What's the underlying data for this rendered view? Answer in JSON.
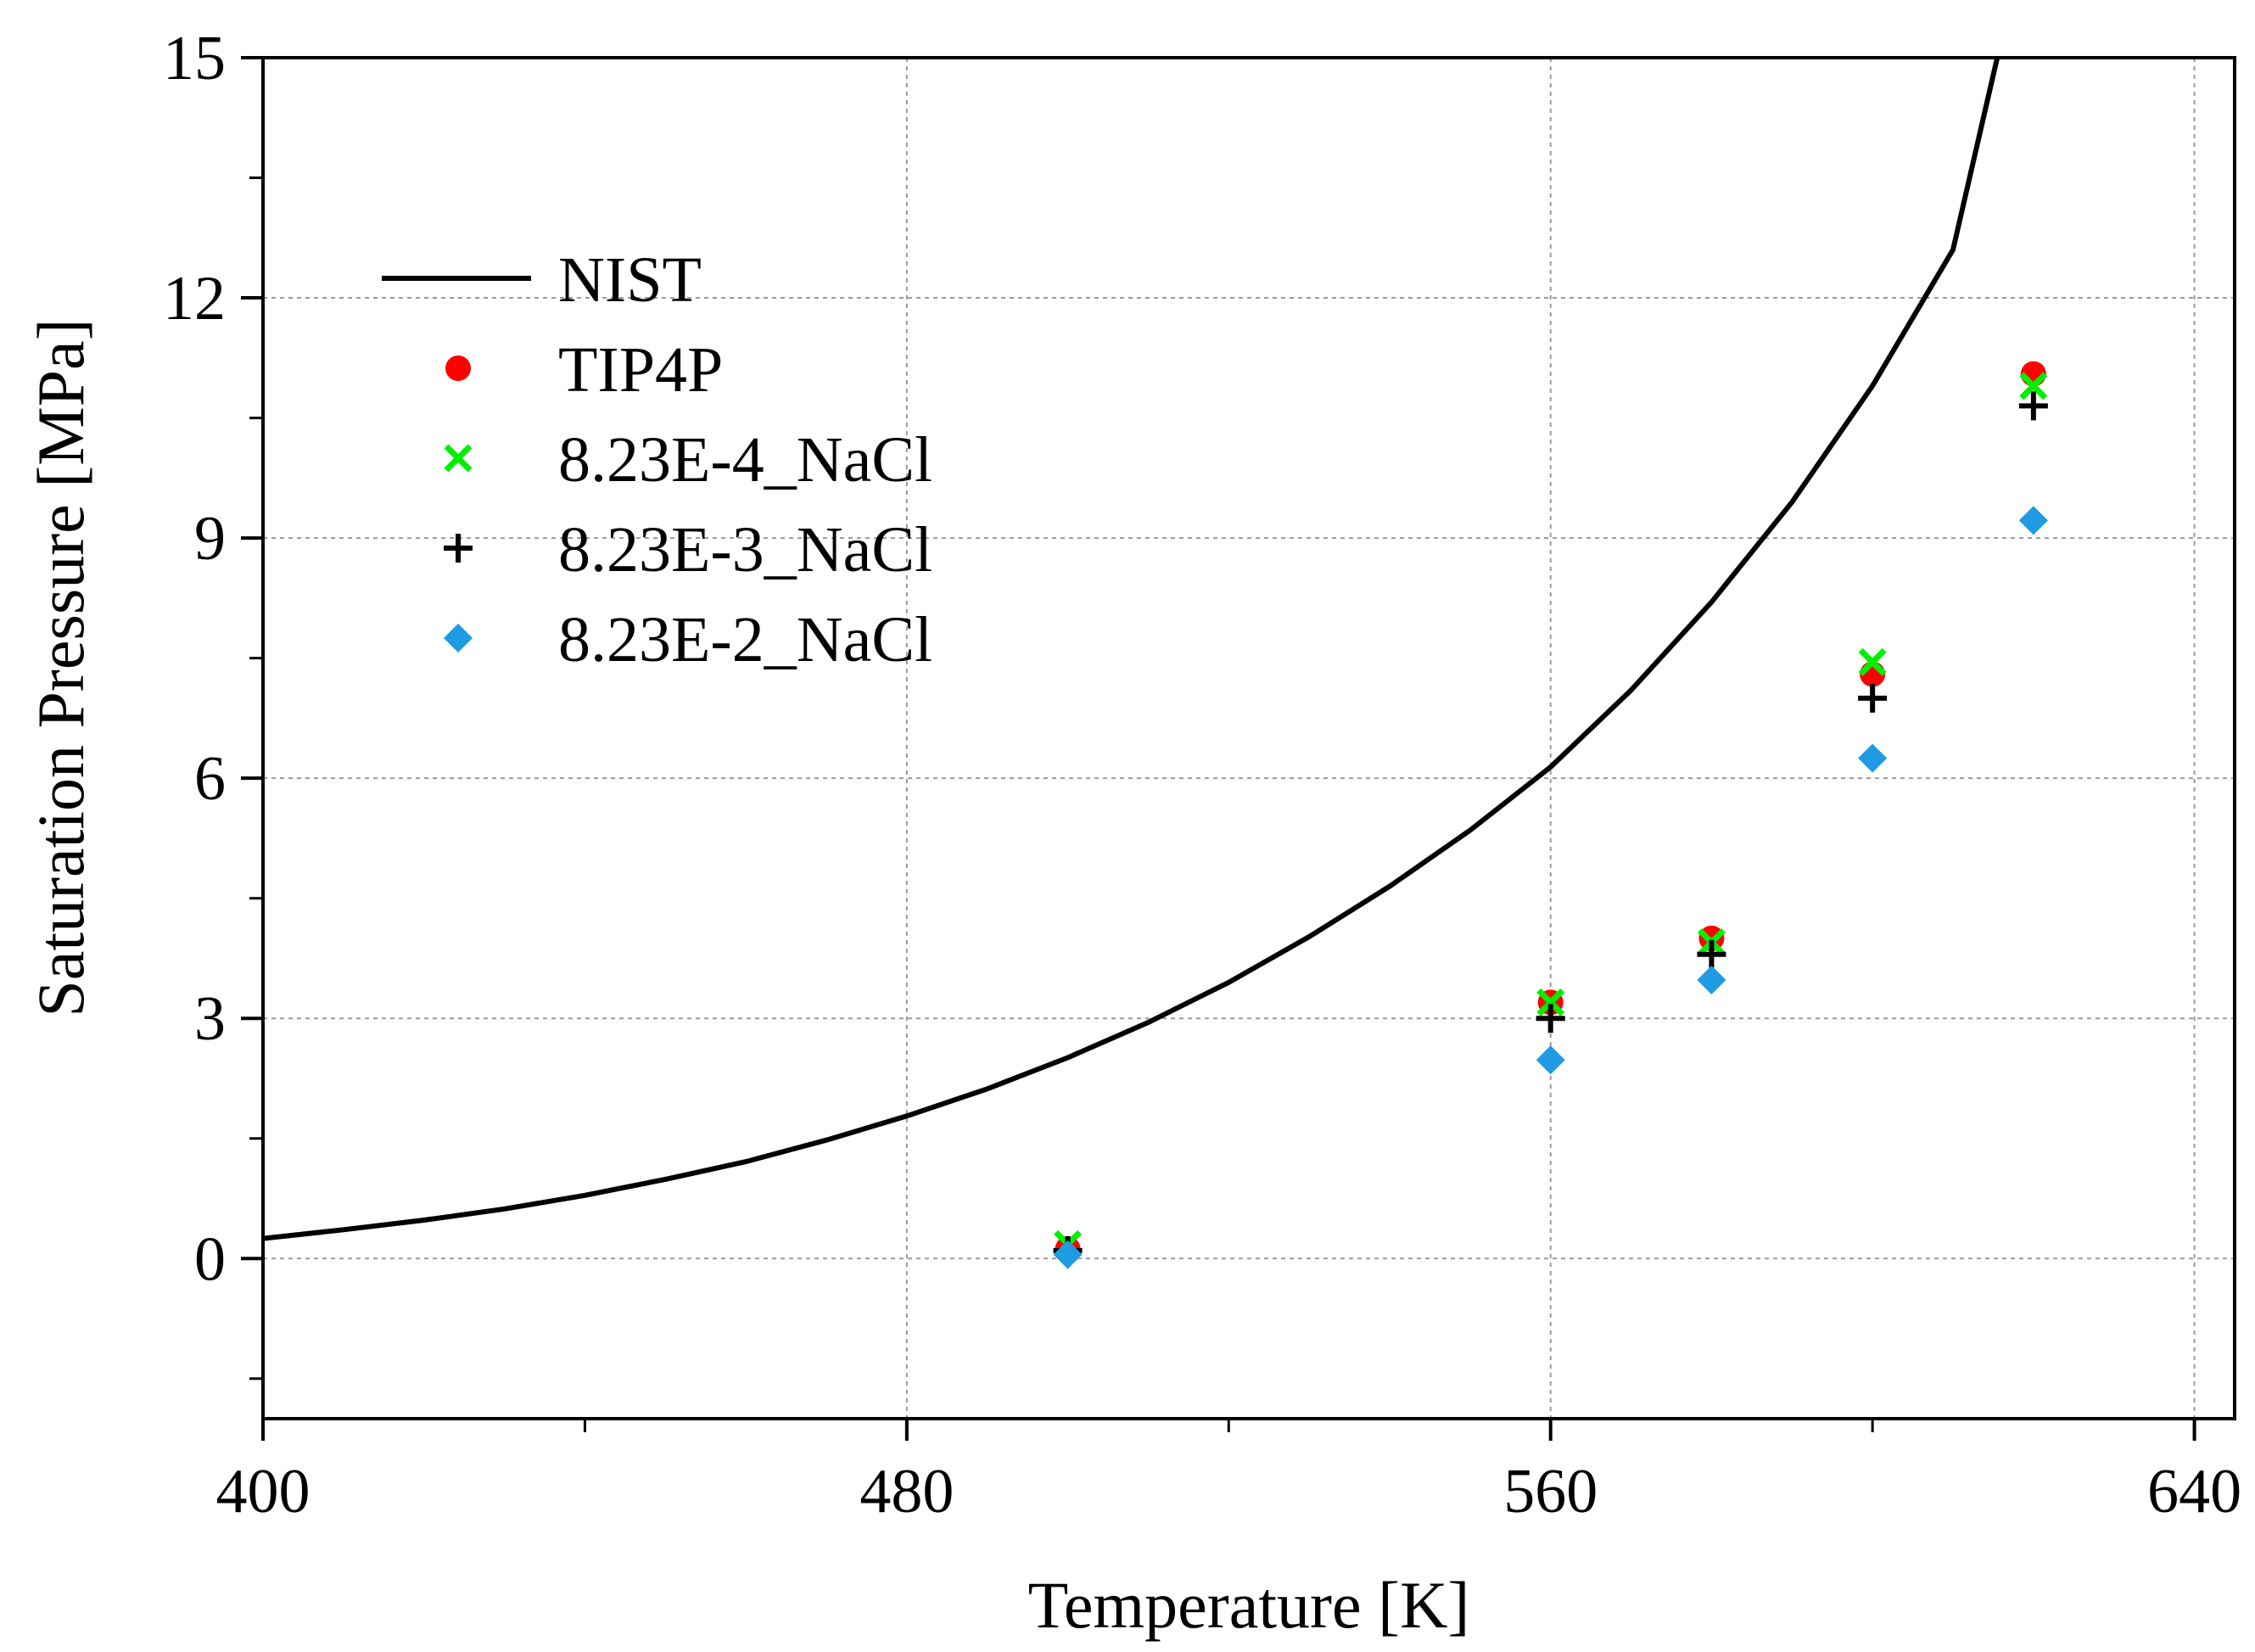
{
  "chart_data": {
    "type": "scatter",
    "xlabel": "Temperature [K]",
    "ylabel": "Saturation Pressure [MPa]",
    "xlim": [
      400,
      645
    ],
    "ylim": [
      -2,
      15
    ],
    "xticks": [
      400,
      480,
      560,
      640
    ],
    "yticks": [
      0,
      3,
      6,
      9,
      12,
      15
    ],
    "grid": true,
    "legend_position": "upper-left",
    "series": [
      {
        "name": "NIST",
        "kind": "line",
        "color": "#000000",
        "x": [
          400,
          410,
          420,
          430,
          440,
          450,
          460,
          470,
          480,
          490,
          500,
          510,
          520,
          530,
          540,
          550,
          560,
          570,
          580,
          590,
          600,
          610,
          615.5
        ],
        "y": [
          0.25,
          0.36,
          0.48,
          0.62,
          0.79,
          0.99,
          1.21,
          1.48,
          1.78,
          2.12,
          2.51,
          2.95,
          3.45,
          4.02,
          4.65,
          5.35,
          6.14,
          7.1,
          8.2,
          9.45,
          10.9,
          12.6,
          15.0
        ]
      },
      {
        "name": "TIP4P",
        "kind": "marker",
        "marker": "circle",
        "color": "#ff0000",
        "x": [
          500,
          560,
          580,
          600,
          620
        ],
        "y": [
          0.12,
          3.2,
          4.0,
          7.3,
          11.05
        ]
      },
      {
        "name": "8.23E-4_NaCl",
        "kind": "marker",
        "marker": "x",
        "color": "#00ee00",
        "x": [
          500,
          560,
          580,
          600,
          620
        ],
        "y": [
          0.18,
          3.2,
          3.95,
          7.45,
          10.9
        ]
      },
      {
        "name": "8.23E-3_NaCl",
        "kind": "marker",
        "marker": "plus",
        "color": "#000000",
        "x": [
          500,
          560,
          580,
          600,
          620
        ],
        "y": [
          0.1,
          3.0,
          3.8,
          7.0,
          10.65
        ]
      },
      {
        "name": "8.23E-2_NaCl",
        "kind": "marker",
        "marker": "diamond",
        "color": "#1e9be3",
        "x": [
          500,
          560,
          580,
          600,
          620
        ],
        "y": [
          0.05,
          2.48,
          3.48,
          6.25,
          9.22
        ]
      }
    ]
  }
}
